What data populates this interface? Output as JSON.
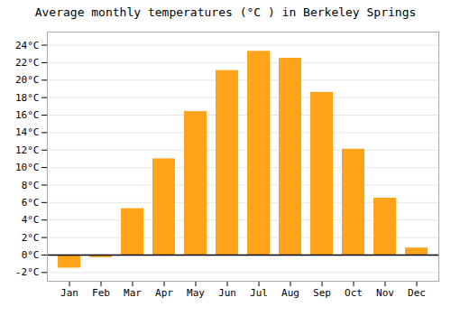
{
  "chart_data": {
    "type": "bar",
    "title": "Average monthly temperatures (°C ) in Berkeley Springs",
    "categories": [
      "Jan",
      "Feb",
      "Mar",
      "Apr",
      "May",
      "Jun",
      "Jul",
      "Aug",
      "Sep",
      "Oct",
      "Nov",
      "Dec"
    ],
    "values": [
      -1.5,
      -0.3,
      5.3,
      11.0,
      16.4,
      21.1,
      23.3,
      22.5,
      18.6,
      12.1,
      6.5,
      0.8
    ],
    "color": "#FFA31A",
    "ylim": [
      -3,
      25.5
    ],
    "yticks": [
      {
        "value": -2,
        "label": "-2°C"
      },
      {
        "value": 0,
        "label": "0°C"
      },
      {
        "value": 2,
        "label": "2°C"
      },
      {
        "value": 4,
        "label": "4°C"
      },
      {
        "value": 6,
        "label": "6°C"
      },
      {
        "value": 8,
        "label": "8°C"
      },
      {
        "value": 10,
        "label": "10°C"
      },
      {
        "value": 12,
        "label": "12°C"
      },
      {
        "value": 14,
        "label": "14°C"
      },
      {
        "value": 16,
        "label": "16°C"
      },
      {
        "value": 18,
        "label": "18°C"
      },
      {
        "value": 20,
        "label": "20°C"
      },
      {
        "value": 22,
        "label": "22°C"
      },
      {
        "value": 24,
        "label": "24°C"
      }
    ],
    "grid": true
  }
}
